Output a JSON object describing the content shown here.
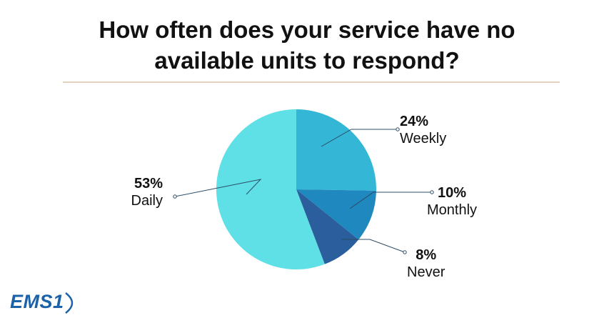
{
  "title": {
    "line1": "How often does your service have no",
    "line2": "available units to respond?"
  },
  "colors": {
    "daily": "#5ee0e6",
    "weekly": "#34b6d6",
    "monthly": "#1f88be",
    "never": "#2a5e9c",
    "rule": "#e3d2bf",
    "leader": "#2c4c66",
    "logo": "#1b62a8"
  },
  "chart_data": {
    "type": "pie",
    "slices": [
      {
        "label": "Weekly",
        "value": 24,
        "value_label": "24%"
      },
      {
        "label": "Monthly",
        "value": 10,
        "value_label": "10%"
      },
      {
        "label": "Never",
        "value": 8,
        "value_label": "8%"
      },
      {
        "label": "Daily",
        "value": 53,
        "value_label": "53%"
      }
    ]
  },
  "logo": {
    "text": "EMS1"
  }
}
